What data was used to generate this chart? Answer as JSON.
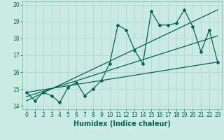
{
  "title": "",
  "xlabel": "Humidex (Indice chaleur)",
  "background_color": "#cceae4",
  "grid_color": "#b0d8d0",
  "line_color": "#006655",
  "xlim": [
    -0.5,
    23.5
  ],
  "ylim": [
    13.8,
    20.2
  ],
  "x_ticks": [
    0,
    1,
    2,
    3,
    4,
    5,
    6,
    7,
    8,
    9,
    10,
    11,
    12,
    13,
    14,
    15,
    16,
    17,
    18,
    19,
    20,
    21,
    22,
    23
  ],
  "y_ticks": [
    14,
    15,
    16,
    17,
    18,
    19,
    20
  ],
  "main_x": [
    0,
    1,
    2,
    3,
    4,
    5,
    6,
    7,
    8,
    9,
    10,
    11,
    12,
    13,
    14,
    15,
    16,
    17,
    18,
    19,
    20,
    21,
    22,
    23
  ],
  "main_y": [
    14.8,
    14.3,
    14.8,
    14.6,
    14.2,
    15.1,
    15.4,
    14.6,
    15.0,
    15.5,
    16.5,
    18.8,
    18.5,
    17.3,
    16.5,
    19.6,
    18.8,
    18.8,
    18.9,
    19.7,
    18.7,
    17.2,
    18.5,
    16.6
  ],
  "trend1_x": [
    0,
    23
  ],
  "trend1_y": [
    14.8,
    16.6
  ],
  "trend2_x": [
    0,
    23
  ],
  "trend2_y": [
    14.3,
    19.7
  ],
  "trend3_x": [
    0,
    23
  ],
  "trend3_y": [
    14.55,
    18.15
  ],
  "tick_fontsize": 5.5,
  "xlabel_fontsize": 7.0
}
